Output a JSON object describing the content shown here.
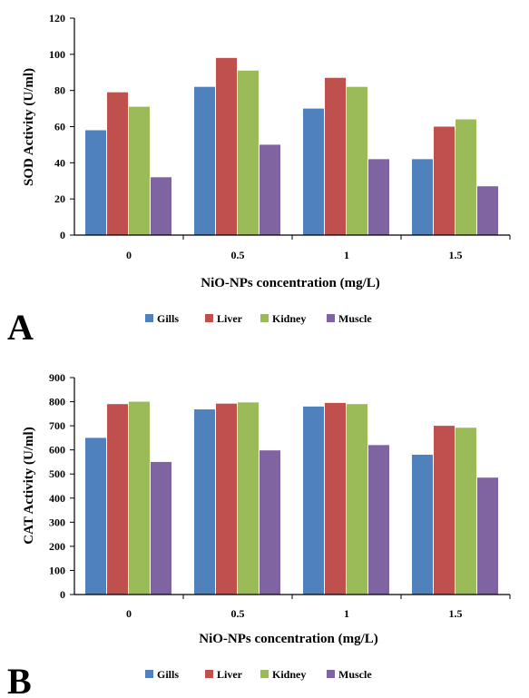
{
  "colors": {
    "Gills": "#4F81BD",
    "Liver": "#C0504D",
    "Kidney": "#9BBB59",
    "Muscle": "#8064A2"
  },
  "chart_data": [
    {
      "type": "bar",
      "panel_label": "A",
      "categories": [
        "0",
        "0.5",
        "1",
        "1.5"
      ],
      "series": [
        {
          "name": "Gills",
          "values": [
            58,
            82,
            70,
            42
          ]
        },
        {
          "name": "Liver",
          "values": [
            79,
            98,
            87,
            60
          ]
        },
        {
          "name": "Kidney",
          "values": [
            71,
            91,
            82,
            64
          ]
        },
        {
          "name": "Muscle",
          "values": [
            32,
            50,
            42,
            27
          ]
        }
      ],
      "xlabel": "NiO-NPs concentration (mg/L)",
      "ylabel": "SOD Activity (U/ml)",
      "ylim": [
        0,
        120
      ],
      "yticks": [
        "0",
        "20",
        "40",
        "60",
        "80",
        "100",
        "120"
      ],
      "grid": false,
      "legend_position": "bottom"
    },
    {
      "type": "bar",
      "panel_label": "B",
      "categories": [
        "0",
        "0.5",
        "1",
        "1.5"
      ],
      "series": [
        {
          "name": "Gills",
          "values": [
            650,
            768,
            780,
            580
          ]
        },
        {
          "name": "Liver",
          "values": [
            790,
            792,
            795,
            700
          ]
        },
        {
          "name": "Kidney",
          "values": [
            800,
            797,
            790,
            692
          ]
        },
        {
          "name": "Muscle",
          "values": [
            550,
            598,
            620,
            485
          ]
        }
      ],
      "xlabel": "NiO-NPs concentration (mg/L)",
      "ylabel": "CAT Activity (U/ml)",
      "ylim": [
        0,
        900
      ],
      "yticks": [
        "0",
        "100",
        "200",
        "300",
        "400",
        "500",
        "600",
        "700",
        "800",
        "900"
      ],
      "grid": false,
      "legend_position": "bottom"
    }
  ]
}
